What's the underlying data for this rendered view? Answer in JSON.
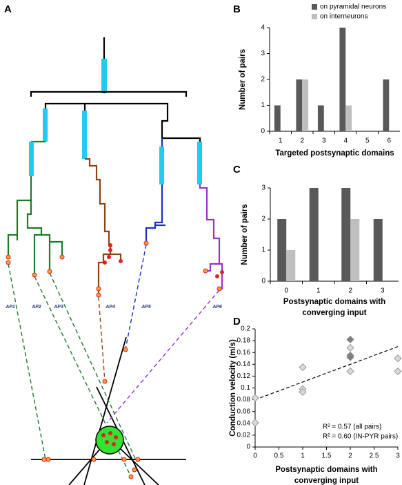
{
  "panel_labels": [
    "A",
    "B",
    "C",
    "D"
  ],
  "diagram": {
    "ap_labels": [
      "AP1",
      "AP2",
      "AP3",
      "AP4",
      "AP5",
      "AP6"
    ]
  },
  "chart_data": [
    {
      "type": "bar",
      "categories": [
        "1",
        "2",
        "3",
        "4",
        "5",
        "6"
      ],
      "series": [
        {
          "name": "on pyramidal neurons",
          "color": "#595959",
          "values": [
            1,
            2,
            1,
            4,
            0,
            2
          ]
        },
        {
          "name": "on interneurons",
          "color": "#bfbfbf",
          "values": [
            0,
            2,
            0,
            1,
            0,
            0
          ]
        }
      ],
      "ylim": [
        0,
        4
      ],
      "yticks": [
        0,
        1,
        2,
        3,
        4
      ],
      "xlabel": [
        "Targeted postsynaptic domains"
      ],
      "ylabel": "Number of pairs",
      "legend": "top-right"
    },
    {
      "type": "bar",
      "categories": [
        "0",
        "1",
        "2",
        "3"
      ],
      "series": [
        {
          "color": "#595959",
          "values": [
            2,
            3,
            3,
            2
          ]
        },
        {
          "color": "#bfbfbf",
          "values": [
            1,
            0,
            2,
            0
          ]
        }
      ],
      "ylim": [
        0,
        3
      ],
      "yticks": [
        0,
        1,
        2,
        3
      ],
      "xlabel": [
        "Postsynaptic domains with",
        "converging input"
      ],
      "ylabel": "Number of pairs"
    },
    {
      "type": "scatter",
      "series": [
        {
          "color": "#d9d9d9",
          "x": [
            0,
            0,
            1,
            1,
            1,
            2,
            2,
            3,
            3
          ],
          "values": [
            0.083,
            0.041,
            0.135,
            0.098,
            0.093,
            0.168,
            0.128,
            0.15,
            0.128
          ]
        },
        {
          "color": "#7f7f7f",
          "x": [
            2,
            2,
            2
          ],
          "values": [
            0.182,
            0.155,
            0.152
          ]
        }
      ],
      "trendline": {
        "x": [
          0,
          3
        ],
        "values": [
          0.08,
          0.17
        ]
      },
      "xlim": [
        0,
        3
      ],
      "ylim": [
        0,
        0.2
      ],
      "xticks": [
        0,
        0.5,
        1,
        1.5,
        2,
        2.5,
        3
      ],
      "yticks": [
        0,
        0.02,
        0.04,
        0.06,
        0.08,
        0.1,
        0.12,
        0.14,
        0.16,
        0.18,
        0.2
      ],
      "xlabel": [
        "Postsynaptic domains with",
        "converging input"
      ],
      "ylabel": "Conduction velocity (m/s)",
      "annotations": [
        "R² = 0.57 (all pairs)",
        "R² = 0.60 (IN-PYR pairs)"
      ]
    }
  ]
}
